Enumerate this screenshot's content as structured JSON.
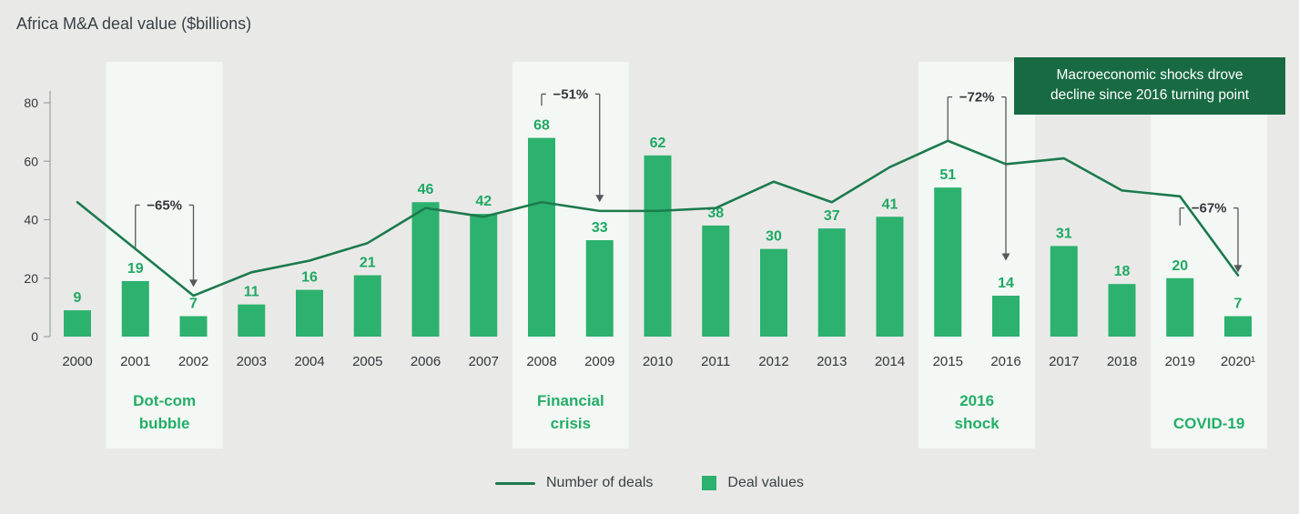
{
  "title": "Africa M&A deal value ($billions)",
  "callout": {
    "lines": [
      "Macroeconomic shocks drove",
      "decline since 2016 turning point"
    ]
  },
  "legend": {
    "items": [
      {
        "swatch": "line",
        "label": "Number of deals"
      },
      {
        "swatch": "square",
        "label": "Deal values"
      }
    ]
  },
  "colors": {
    "background": "#e9eae8",
    "band": "#f3f8f4",
    "bar": "#2db16e",
    "bar_label": "#1fa863",
    "line": "#1c7a4d",
    "event_label": "#24ad68",
    "callout_bg": "#186a43",
    "axis": "#9aa0a2",
    "text_dark": "#33383b",
    "annotation": "#53585c"
  },
  "chart_data": {
    "type": "bar",
    "title": "Africa M&A deal value ($billions)",
    "xlabel": "",
    "ylabel": "",
    "ylim": [
      0,
      80
    ],
    "yticks": [
      0,
      20,
      40,
      60,
      80
    ],
    "grid": false,
    "legend_position": "bottom",
    "categories": [
      "2000",
      "2001",
      "2002",
      "2003",
      "2004",
      "2005",
      "2006",
      "2007",
      "2008",
      "2009",
      "2010",
      "2011",
      "2012",
      "2013",
      "2014",
      "2015",
      "2016",
      "2017",
      "2018",
      "2019",
      "2020¹"
    ],
    "series": [
      {
        "name": "Deal values",
        "type": "bar",
        "values": [
          9,
          19,
          7,
          11,
          16,
          21,
          46,
          42,
          68,
          33,
          62,
          38,
          30,
          37,
          41,
          51,
          14,
          31,
          18,
          20,
          7
        ]
      },
      {
        "name": "Number of deals",
        "type": "line",
        "values": [
          46,
          30,
          14,
          22,
          26,
          32,
          44,
          41,
          46,
          43,
          43,
          44,
          53,
          46,
          58,
          67,
          59,
          61,
          50,
          48,
          21
        ]
      }
    ],
    "bands": [
      {
        "label": "Dot-com bubble",
        "label_lines": [
          "Dot-com",
          "bubble"
        ],
        "from": "2001",
        "to": "2002"
      },
      {
        "label": "Financial crisis",
        "label_lines": [
          "Financial",
          "crisis"
        ],
        "from": "2008",
        "to": "2009"
      },
      {
        "label": "2016 shock",
        "label_lines": [
          "2016",
          "shock"
        ],
        "from": "2015",
        "to": "2016"
      },
      {
        "label": "COVID-19",
        "label_lines": [
          "COVID-19"
        ],
        "from": "2019",
        "to": "2020¹"
      }
    ],
    "annotations": [
      {
        "label": "−65%",
        "peak": "2001",
        "drop": "2002",
        "bracket_value": 45,
        "riser_bottom_value": 30.5,
        "arrow_end_value": 17
      },
      {
        "label": "−51%",
        "peak": "2008",
        "drop": "2009",
        "bracket_value": 83,
        "riser_bottom_value": 79,
        "arrow_end_value": 46
      },
      {
        "label": "−72%",
        "peak": "2015",
        "drop": "2016",
        "bracket_value": 82,
        "riser_bottom_value": 67,
        "arrow_end_value": 26
      },
      {
        "label": "−67%",
        "peak": "2019",
        "drop": "2020¹",
        "bracket_value": 44,
        "riser_bottom_value": 38,
        "arrow_end_value": 22
      }
    ]
  }
}
